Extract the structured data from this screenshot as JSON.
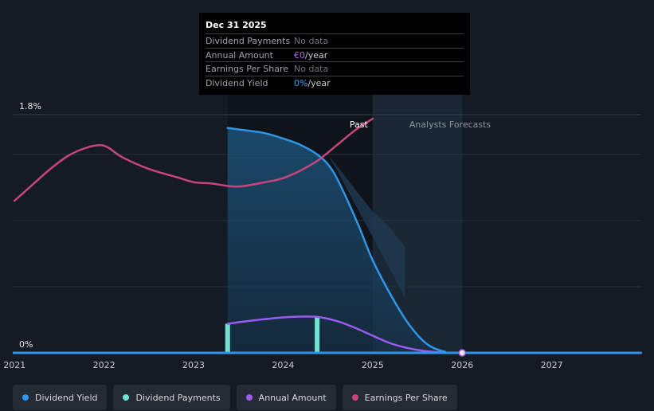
{
  "tooltip": {
    "date": "Dec 31 2025",
    "rows": [
      {
        "label": "Dividend Payments",
        "value": "No data",
        "accent": "",
        "unit": ""
      },
      {
        "label": "Annual Amount",
        "value": "No data",
        "accent": "€0",
        "unit": "/year"
      },
      {
        "label": "Earnings Per Share",
        "value": "No data",
        "accent": "",
        "unit": ""
      },
      {
        "label": "Dividend Yield",
        "value": "No data",
        "accent": "0%",
        "unit": "/year"
      }
    ]
  },
  "regions": {
    "past_label": "Past",
    "forecast_label": "Analysts Forecasts"
  },
  "legend": [
    {
      "label": "Dividend Yield",
      "color": "#2f95e8"
    },
    {
      "label": "Dividend Payments",
      "color": "#6fe3d2"
    },
    {
      "label": "Annual Amount",
      "color": "#9d5cf0"
    },
    {
      "label": "Earnings Per Share",
      "color": "#c8457e"
    }
  ],
  "chart_data": {
    "type": "line",
    "xlim": [
      2020.98,
      2028.0
    ],
    "ylim": [
      0,
      1.8
    ],
    "y_tick_labels": [
      {
        "value": 1.8,
        "label": "1.8%"
      },
      {
        "value": 0,
        "label": "0%"
      }
    ],
    "x_ticks": [
      2021,
      2022,
      2023,
      2024,
      2025,
      2026,
      2027
    ],
    "gridlines": [
      0.5,
      1.0,
      1.5
    ],
    "past_end": 2025.0,
    "forecast_band": [
      2025.0,
      2026.0
    ],
    "series": [
      {
        "name": "Dividend Yield",
        "color": "#2f95e8",
        "points": [
          [
            2023.38,
            1.7
          ],
          [
            2023.6,
            1.68
          ],
          [
            2023.8,
            1.66
          ],
          [
            2024.0,
            1.62
          ],
          [
            2024.2,
            1.57
          ],
          [
            2024.4,
            1.49
          ],
          [
            2024.55,
            1.38
          ],
          [
            2024.7,
            1.18
          ],
          [
            2024.85,
            0.95
          ],
          [
            2025.0,
            0.7
          ],
          [
            2025.2,
            0.44
          ],
          [
            2025.4,
            0.22
          ],
          [
            2025.6,
            0.07
          ],
          [
            2025.8,
            0.01
          ],
          [
            2026.0,
            0.0
          ],
          [
            2028.0,
            0.0
          ]
        ]
      },
      {
        "name": "Annual Amount",
        "color": "#9d5cf0",
        "points": [
          [
            2023.38,
            0.22
          ],
          [
            2023.6,
            0.24
          ],
          [
            2023.8,
            0.255
          ],
          [
            2024.0,
            0.268
          ],
          [
            2024.2,
            0.274
          ],
          [
            2024.4,
            0.27
          ],
          [
            2024.6,
            0.24
          ],
          [
            2024.8,
            0.19
          ],
          [
            2025.0,
            0.13
          ],
          [
            2025.2,
            0.072
          ],
          [
            2025.4,
            0.035
          ],
          [
            2025.6,
            0.012
          ],
          [
            2025.8,
            0.003
          ],
          [
            2026.0,
            0.0
          ],
          [
            2028.0,
            0.0
          ]
        ]
      },
      {
        "name": "Earnings Per Share",
        "color": "#c8457e",
        "points": [
          [
            2021.0,
            1.15
          ],
          [
            2021.2,
            1.27
          ],
          [
            2021.4,
            1.39
          ],
          [
            2021.6,
            1.49
          ],
          [
            2021.8,
            1.55
          ],
          [
            2021.95,
            1.57
          ],
          [
            2022.05,
            1.55
          ],
          [
            2022.2,
            1.48
          ],
          [
            2022.5,
            1.39
          ],
          [
            2022.8,
            1.33
          ],
          [
            2023.0,
            1.29
          ],
          [
            2023.2,
            1.28
          ],
          [
            2023.4,
            1.26
          ],
          [
            2023.55,
            1.26
          ],
          [
            2023.8,
            1.29
          ],
          [
            2024.0,
            1.32
          ],
          [
            2024.2,
            1.38
          ],
          [
            2024.4,
            1.46
          ],
          [
            2024.6,
            1.57
          ],
          [
            2024.8,
            1.68
          ],
          [
            2025.0,
            1.77
          ]
        ]
      }
    ],
    "forecast_range": {
      "name": "Dividend Yield forecast range",
      "upper": [
        [
          2024.5,
          1.5
        ],
        [
          2024.8,
          1.24
        ],
        [
          2025.0,
          1.07
        ],
        [
          2025.2,
          0.94
        ],
        [
          2025.36,
          0.8
        ]
      ]
    },
    "dividend_payments": [
      {
        "x": 2023.38,
        "y": 0.22
      },
      {
        "x": 2024.38,
        "y": 0.268
      }
    ],
    "marker": {
      "x": 2026.0,
      "y": 0.0
    }
  }
}
